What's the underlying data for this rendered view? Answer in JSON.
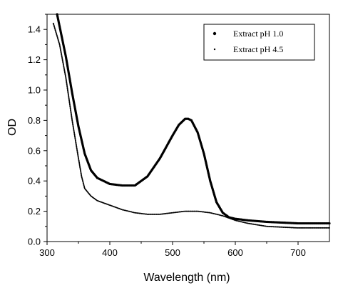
{
  "chart_data": {
    "type": "scatter",
    "xlabel": "Wavelength (nm)",
    "ylabel": "OD",
    "xlim": [
      300,
      750
    ],
    "ylim": [
      0.0,
      1.5
    ],
    "x_ticks": [
      300,
      400,
      500,
      600,
      700
    ],
    "y_ticks": [
      0.0,
      0.2,
      0.4,
      0.6,
      0.8,
      1.0,
      1.2,
      1.4
    ],
    "x_tick_labels": [
      "300",
      "400",
      "500",
      "600",
      "700"
    ],
    "y_tick_labels": [
      "0.0",
      "0.2",
      "0.4",
      "0.6",
      "0.8",
      "1.0",
      "1.2",
      "1.4"
    ],
    "grid": false,
    "legend_position": "top-right",
    "series": [
      {
        "name": "Extract pH 1.0",
        "marker": "dot-large",
        "points": [
          [
            316,
            1.5
          ],
          [
            320,
            1.42
          ],
          [
            330,
            1.22
          ],
          [
            340,
            0.98
          ],
          [
            350,
            0.76
          ],
          [
            360,
            0.58
          ],
          [
            370,
            0.47
          ],
          [
            380,
            0.42
          ],
          [
            390,
            0.4
          ],
          [
            400,
            0.38
          ],
          [
            420,
            0.37
          ],
          [
            440,
            0.37
          ],
          [
            460,
            0.43
          ],
          [
            480,
            0.55
          ],
          [
            500,
            0.7
          ],
          [
            510,
            0.77
          ],
          [
            520,
            0.81
          ],
          [
            525,
            0.81
          ],
          [
            530,
            0.8
          ],
          [
            540,
            0.72
          ],
          [
            550,
            0.58
          ],
          [
            560,
            0.4
          ],
          [
            570,
            0.26
          ],
          [
            580,
            0.19
          ],
          [
            590,
            0.16
          ],
          [
            600,
            0.15
          ],
          [
            620,
            0.14
          ],
          [
            650,
            0.13
          ],
          [
            700,
            0.12
          ],
          [
            750,
            0.12
          ]
        ]
      },
      {
        "name": "Extract pH 4.5",
        "marker": "dot-small",
        "points": [
          [
            310,
            1.44
          ],
          [
            320,
            1.3
          ],
          [
            330,
            1.08
          ],
          [
            340,
            0.8
          ],
          [
            350,
            0.55
          ],
          [
            355,
            0.43
          ],
          [
            360,
            0.35
          ],
          [
            370,
            0.3
          ],
          [
            380,
            0.27
          ],
          [
            400,
            0.24
          ],
          [
            420,
            0.21
          ],
          [
            440,
            0.19
          ],
          [
            460,
            0.18
          ],
          [
            480,
            0.18
          ],
          [
            500,
            0.19
          ],
          [
            520,
            0.2
          ],
          [
            540,
            0.2
          ],
          [
            560,
            0.19
          ],
          [
            580,
            0.17
          ],
          [
            600,
            0.14
          ],
          [
            620,
            0.12
          ],
          [
            650,
            0.1
          ],
          [
            700,
            0.09
          ],
          [
            750,
            0.09
          ]
        ]
      }
    ]
  }
}
